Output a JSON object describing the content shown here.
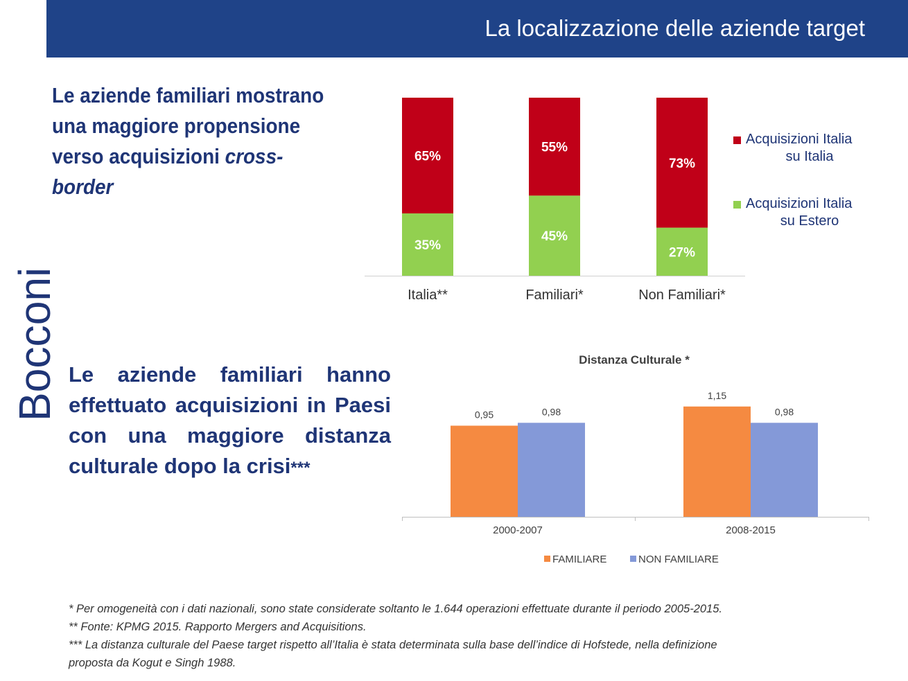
{
  "header": {
    "title": "La localizzazione delle aziende target"
  },
  "logo": {
    "text": "Bocconi"
  },
  "lead1": {
    "text": "Le aziende familiari mostrano una maggiore propensione verso acquisizioni ",
    "emphasis": "cross-border"
  },
  "lead2": {
    "text": "Le aziende familiari hanno effettuato acquisizioni in Paesi con una maggiore distanza culturale dopo la crisi",
    "suffix": "***"
  },
  "footnotes": [
    "* Per omogeneità con i dati nazionali, sono state considerate soltanto le 1.644 operazioni effettuate durante il periodo 2005-2015.",
    "** Fonte: KPMG 2015. Rapporto Mergers and Acquisitions.",
    "*** La distanza culturale del Paese target rispetto all’Italia è stata determinata sulla base dell’indice di Hofstede, nella definizione",
    "proposta da Kogut e Singh  1988."
  ],
  "colors": {
    "header": "#1f4388",
    "text": "#1f3576",
    "red": "#c00018",
    "green": "#92d050",
    "orange": "#f58a41",
    "blue": "#8499d8"
  },
  "chart_data": [
    {
      "type": "bar",
      "stacked": true,
      "percent": true,
      "categories": [
        "Italia**",
        "Familiari*",
        "Non Familiari*"
      ],
      "series": [
        {
          "name": "Acquisizioni Italia su Estero",
          "color": "#92d050",
          "values": [
            35,
            45,
            27
          ],
          "labels": [
            "35%",
            "45%",
            "27%"
          ]
        },
        {
          "name": "Acquisizioni Italia su Italia",
          "color": "#c00018",
          "values": [
            65,
            55,
            73
          ],
          "labels": [
            "65%",
            "55%",
            "73%"
          ]
        }
      ],
      "legend_order": [
        1,
        0
      ],
      "legend_lines": [
        [
          "Acquisizioni Italia",
          "su Italia"
        ],
        [
          "Acquisizioni Italia",
          "su Estero"
        ]
      ],
      "legend_position": "right",
      "ylim": [
        0,
        100
      ],
      "grid": false
    },
    {
      "type": "bar",
      "title": "Distanza Culturale *",
      "categories": [
        "2000-2007",
        "2008-2015"
      ],
      "series": [
        {
          "name": "FAMILIARE",
          "color": "#f58a41",
          "values": [
            0.95,
            1.15
          ],
          "labels": [
            "0,95",
            "1,15"
          ]
        },
        {
          "name": "NON FAMILIARE",
          "color": "#8499d8",
          "values": [
            0.98,
            0.98
          ],
          "labels": [
            "0,98",
            "0,98"
          ]
        }
      ],
      "legend_position": "bottom",
      "ylim": [
        0,
        1.17
      ],
      "grid": false
    }
  ]
}
